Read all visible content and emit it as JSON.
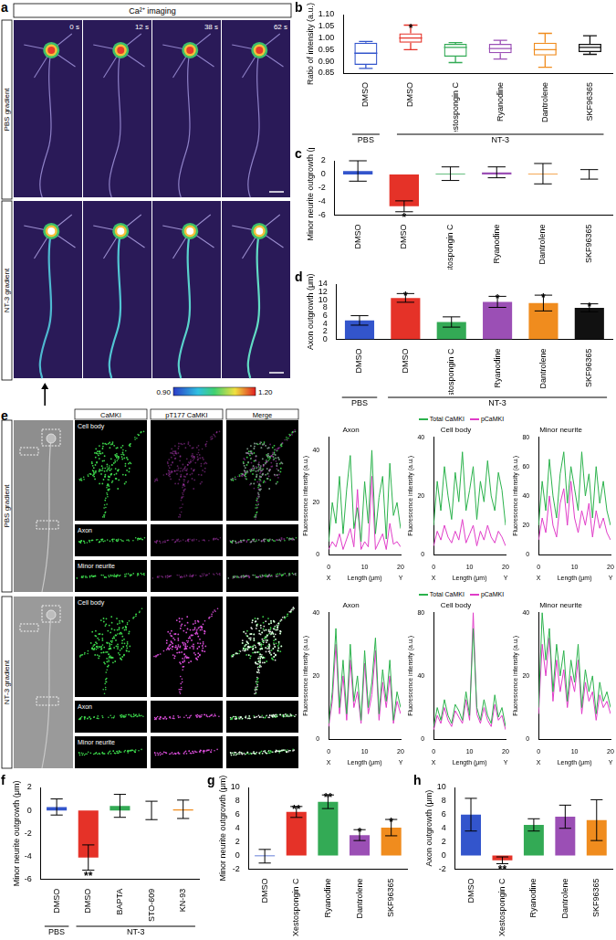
{
  "image_panels": [
    {
      "panel": "a",
      "header": "Ca²⁺ imaging",
      "rows": [
        "PBS gradient",
        "NT-3 gradient"
      ],
      "times": [
        "0 s",
        "12 s",
        "38 s",
        "62 s"
      ],
      "colorbar_ticks": [
        {
          "value": 0.9,
          "label": "0.90"
        },
        {
          "value": 1.2,
          "label": "1.20"
        }
      ]
    },
    {
      "panel": "e",
      "rows": [
        "PBS gradient",
        "NT-3 gradient"
      ],
      "columns": [
        "CaMKI",
        "pT177 CaMKI",
        "Merge"
      ],
      "regions": [
        "Cell body",
        "Axon",
        "Minor neurite"
      ]
    }
  ],
  "chart_data": [
    {
      "panel": "b",
      "type": "box",
      "categories": [
        "DMSO",
        "DMSO",
        "Xestospongin C",
        "Ryanodine",
        "Dantrolene",
        "SKF96365"
      ],
      "groups": [
        {
          "label": "PBS",
          "count": 1
        },
        {
          "label": "NT-3",
          "count": 5
        }
      ],
      "values": [
        {
          "min": 0.87,
          "q1": 0.885,
          "median": 0.935,
          "q3": 0.98,
          "max": 0.985
        },
        {
          "min": 0.95,
          "q1": 0.98,
          "median": 1.0,
          "q3": 1.02,
          "max": 1.055
        },
        {
          "min": 0.895,
          "q1": 0.92,
          "median": 0.96,
          "q3": 0.975,
          "max": 0.98
        },
        {
          "min": 0.91,
          "q1": 0.935,
          "median": 0.955,
          "q3": 0.975,
          "max": 0.99
        },
        {
          "min": 0.875,
          "q1": 0.925,
          "median": 0.95,
          "q3": 0.98,
          "max": 1.02
        },
        {
          "min": 0.93,
          "q1": 0.94,
          "median": 0.96,
          "q3": 0.975,
          "max": 1.01
        }
      ],
      "colors": [
        "#3355cc",
        "#e53228",
        "#33aa55",
        "#9b4fb5",
        "#f08c1e",
        "#111111"
      ],
      "annotations": [
        null,
        "*",
        null,
        null,
        null,
        null
      ],
      "ylabel": "Ratio of intensity (a.u.)",
      "ylim": [
        0.85,
        1.1
      ],
      "yticks": [
        0.85,
        {
          "value": 0.9,
          "label": "0.90"
        },
        0.95,
        {
          "value": 1,
          "label": "1.00"
        },
        1.05,
        {
          "value": 1.1,
          "label": "1.10"
        }
      ],
      "grid": false
    },
    {
      "panel": "c",
      "type": "bar",
      "categories": [
        "DMSO",
        "DMSO",
        "Xestospongin C",
        "Ryanodine",
        "Dantrolene",
        "SKF96365"
      ],
      "values": [
        0.5,
        -4.7,
        0.1,
        0.3,
        0.1,
        0.0
      ],
      "errors": [
        1.5,
        0.8,
        1.0,
        0.8,
        1.5,
        0.7
      ],
      "colors": [
        "#3355cc",
        "#e53228",
        "#33aa55",
        "#9b4fb5",
        "#f08c1e",
        "#111111"
      ],
      "annotations": [
        null,
        "*",
        null,
        null,
        null,
        null
      ],
      "ylabel": "Minor neurite outgrowth (μm)",
      "ylim": [
        -6,
        2
      ],
      "yticks": [
        -6,
        -4,
        -2,
        0,
        2
      ],
      "grid": false
    },
    {
      "panel": "d",
      "type": "bar",
      "categories": [
        "DMSO",
        "DMSO",
        "Xestospongin C",
        "Ryanodine",
        "Dantrolene",
        "SKF96365"
      ],
      "groups": [
        {
          "label": "PBS",
          "count": 1
        },
        {
          "label": "NT-3",
          "count": 5
        }
      ],
      "values": [
        4.8,
        10.5,
        4.4,
        9.5,
        9.2,
        8.0
      ],
      "errors": [
        1.2,
        1.1,
        1.3,
        1.4,
        2.0,
        1.0
      ],
      "colors": [
        "#3355cc",
        "#e53228",
        "#33aa55",
        "#9b4fb5",
        "#f08c1e",
        "#111111"
      ],
      "annotations": [
        null,
        "*",
        null,
        "*",
        "*",
        "*"
      ],
      "ylabel": "Axon outgrowth (μm)",
      "ylim": [
        0,
        14
      ],
      "yticks": [
        0,
        2,
        4,
        6,
        8,
        10,
        12,
        14
      ],
      "grid": false
    },
    {
      "type": "line",
      "title": "Axon",
      "x": [
        0,
        1,
        2,
        3,
        4,
        5,
        6,
        7,
        8,
        9,
        10,
        11,
        12,
        13,
        14,
        15,
        16,
        17,
        18,
        19,
        20
      ],
      "xlim": [
        0,
        20
      ],
      "xticks": [
        0,
        10,
        20
      ],
      "end_labels": [
        "X",
        "Y"
      ],
      "xlabel": "Length (μm)",
      "ylabel": "Fluorescence intensity (a.u.)",
      "ylim": [
        0,
        45
      ],
      "yticks": [
        0,
        20,
        40
      ],
      "grid": false,
      "series": [
        {
          "name": "Total CaMKI",
          "color": "#2bb24c",
          "values": [
            5,
            20,
            12,
            30,
            8,
            25,
            38,
            10,
            18,
            5,
            28,
            12,
            40,
            8,
            22,
            30,
            6,
            35,
            15,
            20,
            10
          ]
        },
        {
          "name": "pCaMKI",
          "color": "#e03cc8",
          "values": [
            2,
            5,
            3,
            8,
            2,
            6,
            10,
            3,
            25,
            2,
            5,
            3,
            30,
            2,
            5,
            8,
            2,
            12,
            4,
            5,
            3
          ]
        }
      ]
    },
    {
      "type": "line",
      "title": "Cell body",
      "legend": "top",
      "x": [
        0,
        1,
        2,
        3,
        4,
        5,
        6,
        7,
        8,
        9,
        10,
        11,
        12,
        13,
        14,
        15,
        16,
        17,
        18,
        19,
        20
      ],
      "xlim": [
        0,
        20
      ],
      "xticks": [
        0,
        10,
        20
      ],
      "end_labels": [
        "X",
        "Y"
      ],
      "xlabel": "Length (μm)",
      "ylabel": "Fluorescence intensity (a.u.)",
      "ylim": [
        0,
        40
      ],
      "yticks": [
        0,
        20,
        40
      ],
      "grid": false,
      "series": [
        {
          "name": "Total CaMKI",
          "color": "#2bb24c",
          "values": [
            10,
            25,
            15,
            30,
            20,
            12,
            28,
            18,
            35,
            15,
            22,
            30,
            12,
            25,
            18,
            32,
            20,
            15,
            28,
            22,
            10
          ]
        },
        {
          "name": "pCaMKI",
          "color": "#e03cc8",
          "values": [
            3,
            8,
            5,
            10,
            6,
            4,
            8,
            5,
            12,
            4,
            7,
            10,
            3,
            8,
            5,
            10,
            6,
            4,
            8,
            6,
            3
          ]
        }
      ]
    },
    {
      "type": "line",
      "title": "Minor neurite",
      "x": [
        0,
        1,
        2,
        3,
        4,
        5,
        6,
        7,
        8,
        9,
        10,
        11,
        12,
        13,
        14,
        15,
        16,
        17,
        18,
        19,
        20
      ],
      "xlim": [
        0,
        20
      ],
      "xticks": [
        0,
        10,
        20
      ],
      "end_labels": [
        "X",
        "Y"
      ],
      "xlabel": "Length (μm)",
      "ylabel": "Fluorescence intensity (a.u.)",
      "ylim": [
        0,
        80
      ],
      "yticks": [
        0,
        20,
        40,
        60,
        80
      ],
      "grid": false,
      "series": [
        {
          "name": "Total CaMKI",
          "color": "#2bb24c",
          "values": [
            20,
            50,
            30,
            65,
            40,
            25,
            55,
            70,
            35,
            60,
            45,
            30,
            70,
            40,
            55,
            25,
            60,
            35,
            50,
            30,
            20
          ]
        },
        {
          "name": "pCaMKI",
          "color": "#e03cc8",
          "values": [
            10,
            25,
            15,
            40,
            20,
            12,
            35,
            45,
            20,
            50,
            25,
            15,
            30,
            20,
            35,
            12,
            30,
            18,
            25,
            15,
            10
          ]
        }
      ]
    },
    {
      "type": "line",
      "title": "Axon",
      "x": [
        0,
        1,
        2,
        3,
        4,
        5,
        6,
        7,
        8,
        9,
        10,
        11,
        12,
        13,
        14,
        15,
        16,
        17,
        18,
        19,
        20
      ],
      "xlim": [
        0,
        20
      ],
      "xticks": [
        0,
        10,
        20
      ],
      "end_labels": [
        "X",
        "Y"
      ],
      "xlabel": "Length (μm)",
      "ylabel": "Fluorescence intensity (a.u.)",
      "ylim": [
        0,
        40
      ],
      "yticks": [
        0,
        20,
        40
      ],
      "grid": false,
      "series": [
        {
          "name": "Total CaMKI",
          "color": "#2bb24c",
          "values": [
            5,
            15,
            35,
            10,
            25,
            8,
            30,
            12,
            20,
            6,
            28,
            10,
            18,
            32,
            8,
            22,
            12,
            25,
            6,
            15,
            10
          ]
        },
        {
          "name": "pCaMKI",
          "color": "#e03cc8",
          "values": [
            4,
            12,
            30,
            8,
            20,
            6,
            25,
            10,
            15,
            5,
            24,
            8,
            14,
            28,
            6,
            18,
            10,
            20,
            5,
            12,
            8
          ]
        }
      ]
    },
    {
      "type": "line",
      "title": "Cell body",
      "legend": "top",
      "x": [
        0,
        1,
        2,
        3,
        4,
        5,
        6,
        7,
        8,
        9,
        10,
        11,
        12,
        13,
        14,
        15,
        16,
        17,
        18,
        19,
        20
      ],
      "xlim": [
        0,
        20
      ],
      "xticks": [
        0,
        10,
        20
      ],
      "end_labels": [
        "X",
        "Y"
      ],
      "xlabel": "Length (μm)",
      "ylabel": "Fluorescence intensity (a.u.)",
      "ylim": [
        0,
        80
      ],
      "yticks": [
        0,
        40,
        80
      ],
      "grid": false,
      "series": [
        {
          "name": "Total CaMKI",
          "color": "#2bb24c",
          "values": [
            8,
            20,
            12,
            25,
            15,
            10,
            22,
            18,
            12,
            30,
            15,
            70,
            20,
            12,
            25,
            15,
            10,
            28,
            14,
            20,
            8
          ]
        },
        {
          "name": "pCaMKI",
          "color": "#e03cc8",
          "values": [
            6,
            15,
            10,
            20,
            12,
            8,
            18,
            14,
            10,
            25,
            12,
            80,
            16,
            10,
            20,
            12,
            8,
            22,
            12,
            15,
            6
          ]
        }
      ]
    },
    {
      "type": "line",
      "title": "Minor neurite",
      "x": [
        0,
        1,
        2,
        3,
        4,
        5,
        6,
        7,
        8,
        9,
        10,
        11,
        12,
        13,
        14,
        15,
        16,
        17,
        18,
        19,
        20
      ],
      "xlim": [
        0,
        20
      ],
      "xticks": [
        0,
        10,
        20
      ],
      "end_labels": [
        "X",
        "Y"
      ],
      "xlabel": "Length (μm)",
      "ylabel": "Fluorescence intensity (a.u.)",
      "ylim": [
        0,
        40
      ],
      "yticks": [
        0,
        20,
        40
      ],
      "grid": false,
      "series": [
        {
          "name": "Total CaMKI",
          "color": "#2bb24c",
          "values": [
            10,
            40,
            25,
            35,
            15,
            30,
            20,
            28,
            12,
            25,
            18,
            30,
            10,
            22,
            15,
            20,
            8,
            18,
            12,
            15,
            10
          ]
        },
        {
          "name": "pCaMKI",
          "color": "#e03cc8",
          "values": [
            8,
            30,
            20,
            32,
            12,
            25,
            15,
            22,
            10,
            20,
            15,
            25,
            8,
            18,
            12,
            15,
            6,
            14,
            10,
            12,
            8
          ]
        }
      ]
    },
    {
      "panel": "f",
      "type": "bar",
      "categories": [
        "DMSO",
        "DMSO",
        "BAPTA",
        "STO-609",
        "KN-93"
      ],
      "groups": [
        {
          "label": "PBS",
          "count": 1
        },
        {
          "label": "NT-3",
          "count": 4
        }
      ],
      "values": [
        0.3,
        -4.1,
        0.4,
        0.0,
        0.1
      ],
      "errors": [
        0.7,
        1.1,
        1.0,
        0.8,
        0.8
      ],
      "colors": [
        "#3355cc",
        "#e53228",
        "#33aa55",
        "#9b4fb5",
        "#f08c1e"
      ],
      "annotations": [
        null,
        "**",
        null,
        null,
        null
      ],
      "ylabel": "Minor neurite outgrowth (μm)",
      "ylim": [
        -6,
        2
      ],
      "yticks": [
        -6,
        -4,
        -2,
        0,
        2
      ],
      "grid": false
    },
    {
      "panel": "g",
      "type": "bar",
      "categories": [
        "DMSO",
        "Xestospongin C",
        "Ryanodine",
        "Dantrolene",
        "SKF96365"
      ],
      "values": [
        -0.1,
        6.4,
        7.9,
        3.0,
        4.1
      ],
      "errors": [
        1.0,
        0.8,
        1.0,
        0.8,
        1.2
      ],
      "colors": [
        "#3355cc",
        "#e53228",
        "#33aa55",
        "#9b4fb5",
        "#f08c1e"
      ],
      "annotations": [
        null,
        "**",
        "**",
        "*",
        "*"
      ],
      "ylabel": "Minor neurite outgrowth (μm)",
      "ylim": [
        -2,
        10
      ],
      "yticks": [
        -2,
        0,
        2,
        4,
        6,
        8,
        10
      ],
      "grid": false
    },
    {
      "panel": "h",
      "type": "bar",
      "categories": [
        "DMSO",
        "Xestospongin C",
        "Ryanodine",
        "Dantrolene",
        "SKF96365"
      ],
      "values": [
        6.0,
        -0.7,
        4.5,
        5.7,
        5.2
      ],
      "errors": [
        2.4,
        0.5,
        0.9,
        1.7,
        3.0
      ],
      "colors": [
        "#3355cc",
        "#e53228",
        "#33aa55",
        "#9b4fb5",
        "#f08c1e"
      ],
      "annotations": [
        null,
        "**",
        null,
        null,
        null
      ],
      "ylabel": "Axon outgrowth (μm)",
      "ylim": [
        -2,
        10
      ],
      "yticks": [
        -2,
        0,
        2,
        4,
        6,
        8,
        10
      ],
      "grid": false
    }
  ]
}
